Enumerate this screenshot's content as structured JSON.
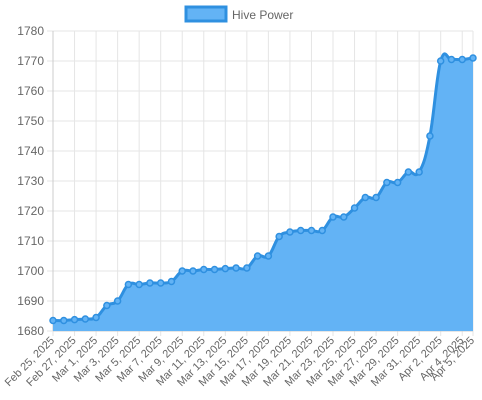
{
  "chart_data": {
    "type": "area",
    "legend": {
      "label": "Hive Power",
      "position": "top"
    },
    "colors": {
      "line": "#2f90e0",
      "fill": "#63b3f5",
      "point": "#63b3f5",
      "grid": "#e5e5e5",
      "text": "#666666"
    },
    "grid": true,
    "ylim": [
      1680,
      1780
    ],
    "yticks": [
      1680,
      1690,
      1700,
      1710,
      1720,
      1730,
      1740,
      1750,
      1760,
      1770,
      1780
    ],
    "x_tick_labels": [
      "Feb 25, 2025",
      "Feb 27, 2025",
      "Mar 1, 2025",
      "Mar 3, 2025",
      "Mar 5, 2025",
      "Mar 7, 2025",
      "Mar 9, 2025",
      "Mar 11, 2025",
      "Mar 13, 2025",
      "Mar 15, 2025",
      "Mar 17, 2025",
      "Mar 19, 2025",
      "Mar 21, 2025",
      "Mar 23, 2025",
      "Mar 25, 2025",
      "Mar 27, 2025",
      "Mar 29, 2025",
      "Mar 31, 2025",
      "Apr 2, 2025",
      "Apr 4, 2025",
      "Apr 5, 2025"
    ],
    "series": [
      {
        "name": "Hive Power",
        "x": [
          "2025-02-25",
          "2025-02-26",
          "2025-02-27",
          "2025-02-28",
          "2025-03-01",
          "2025-03-02",
          "2025-03-03",
          "2025-03-04",
          "2025-03-05",
          "2025-03-06",
          "2025-03-07",
          "2025-03-08",
          "2025-03-09",
          "2025-03-10",
          "2025-03-11",
          "2025-03-12",
          "2025-03-13",
          "2025-03-14",
          "2025-03-15",
          "2025-03-16",
          "2025-03-17",
          "2025-03-18",
          "2025-03-19",
          "2025-03-20",
          "2025-03-21",
          "2025-03-22",
          "2025-03-23",
          "2025-03-24",
          "2025-03-25",
          "2025-03-26",
          "2025-03-27",
          "2025-03-28",
          "2025-03-29",
          "2025-03-30",
          "2025-03-31",
          "2025-04-01",
          "2025-04-02",
          "2025-04-03",
          "2025-04-04",
          "2025-04-05"
        ],
        "values": [
          1683.5,
          1683.5,
          1683.8,
          1684,
          1684.5,
          1688.5,
          1690,
          1695.5,
          1695.5,
          1696,
          1696,
          1696.5,
          1700,
          1700,
          1700.5,
          1700.5,
          1700.8,
          1701,
          1701,
          1705,
          1705,
          1711.5,
          1713,
          1713.5,
          1713.5,
          1713.5,
          1718,
          1718,
          1721,
          1724.5,
          1724.5,
          1729.5,
          1729.5,
          1733,
          1733,
          1745,
          1770,
          1770.5,
          1770.5,
          1771
        ]
      }
    ]
  }
}
